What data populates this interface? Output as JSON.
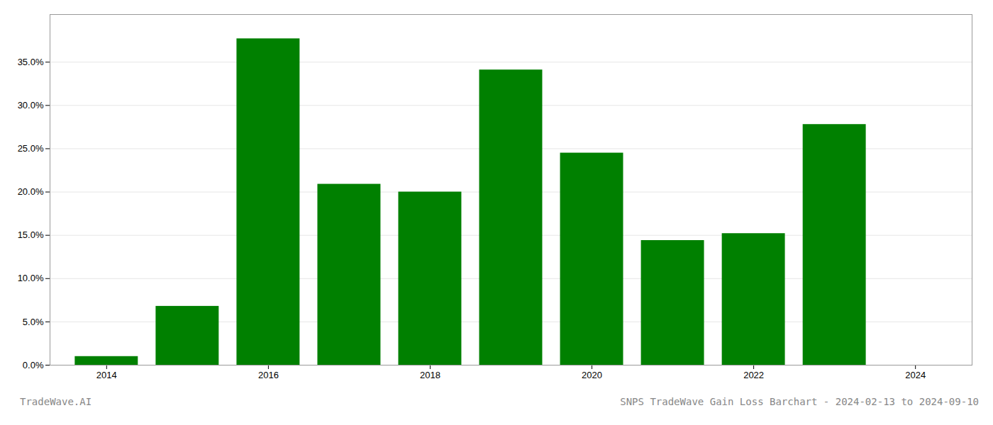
{
  "chart_data": {
    "type": "bar",
    "x": [
      2014,
      2015,
      2016,
      2017,
      2018,
      2019,
      2020,
      2021,
      2022,
      2023,
      2024
    ],
    "values": [
      0.01,
      0.068,
      0.377,
      0.209,
      0.2,
      0.341,
      0.245,
      0.144,
      0.152,
      0.278,
      0.0
    ],
    "color": "#008000",
    "xlim": [
      2013.3,
      2024.7
    ],
    "xticks": [
      2014,
      2016,
      2018,
      2020,
      2022,
      2024
    ],
    "ylim": [
      0.0,
      0.405
    ],
    "yticks": [
      {
        "value": 0.0,
        "label": "0.0%"
      },
      {
        "value": 0.05,
        "label": "5.0%"
      },
      {
        "value": 0.1,
        "label": "10.0%"
      },
      {
        "value": 0.15,
        "label": "15.0%"
      },
      {
        "value": 0.2,
        "label": "20.0%"
      },
      {
        "value": 0.25,
        "label": "25.0%"
      },
      {
        "value": 0.3,
        "label": "30.0%"
      },
      {
        "value": 0.35,
        "label": "35.0%"
      }
    ],
    "grid": true,
    "annotations": [
      "TradeWave.AI",
      "SNPS TradeWave Gain Loss Barchart - 2024-02-13 to 2024-09-10"
    ]
  }
}
